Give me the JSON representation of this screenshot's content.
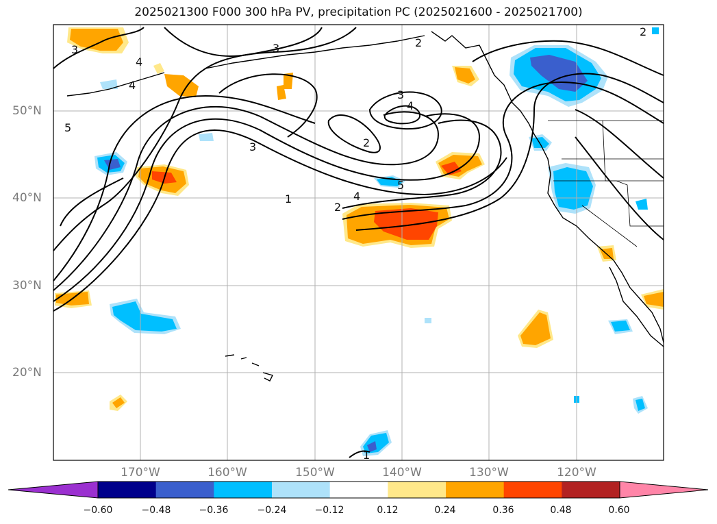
{
  "title": "2025021300 F000 300 hPa PV, precipitation PC (2025021600 - 2025021700)",
  "lat_labels": [
    "50°N",
    "40°N",
    "30°N",
    "20°N"
  ],
  "lon_labels": [
    "170°W",
    "160°W",
    "150°W",
    "140°W",
    "130°W",
    "120°W"
  ],
  "contour_labels": [
    "3",
    "4",
    "4",
    "5",
    "3",
    "2",
    "1",
    "2",
    "4",
    "5",
    "3",
    "4",
    "2",
    "2",
    "3",
    "1"
  ],
  "colorbar": {
    "ticks": [
      "−0.60",
      "−0.48",
      "−0.36",
      "−0.24",
      "−0.12",
      "0.12",
      "0.24",
      "0.36",
      "0.48",
      "0.60"
    ],
    "colors": [
      "#9b30d0",
      "#00008b",
      "#3a5fcd",
      "#00bfff",
      "#aee2fa",
      "#ffffff",
      "#ffe88a",
      "#ffa500",
      "#ff4500",
      "#b22222",
      "#ff85a8"
    ]
  }
}
